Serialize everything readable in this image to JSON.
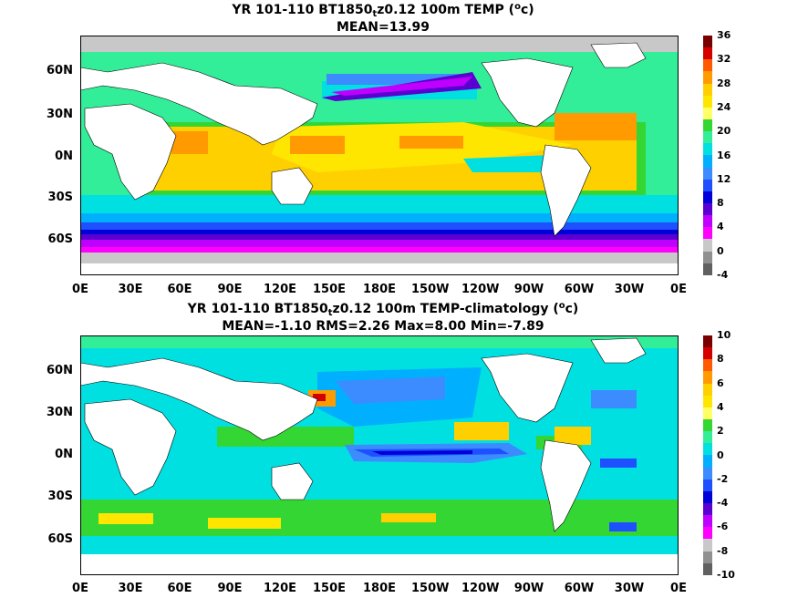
{
  "panel1": {
    "title_pre": "YR 101-110 BT1850",
    "title_sub": "t",
    "title_post": "z0.12 100m TEMP (",
    "title_sup": "o",
    "title_end": "c)",
    "stats": "MEAN=13.99",
    "colorbar_ticks": [
      "36",
      "32",
      "28",
      "24",
      "20",
      "16",
      "12",
      "8",
      "4",
      "0",
      "-4"
    ],
    "colors": [
      "#7a0000",
      "#d40000",
      "#ff5a00",
      "#ff9a00",
      "#ffd000",
      "#ffe600",
      "#ffff66",
      "#33d633",
      "#33ee99",
      "#00e0e0",
      "#00b0ff",
      "#3c8cff",
      "#1e50ff",
      "#0000d8",
      "#5a00d0",
      "#c000ff",
      "#ff00ff",
      "#c8c8c8",
      "#909090",
      "#606060"
    ],
    "landmask_color": "#c8c8c8"
  },
  "panel2": {
    "title_pre": "YR 101-110 BT1850",
    "title_sub": "t",
    "title_post": "z0.12 100m TEMP-climatology (",
    "title_sup": "o",
    "title_end": "c)",
    "stats": "MEAN=-1.10   RMS=2.26   Max=8.00   Min=-7.89",
    "colorbar_ticks": [
      "10",
      "8",
      "6",
      "4",
      "2",
      "0",
      "-2",
      "-4",
      "-6",
      "-8",
      "-10"
    ],
    "colors": [
      "#7a0000",
      "#d40000",
      "#ff5a00",
      "#ff9a00",
      "#ffd000",
      "#ffe600",
      "#ffff66",
      "#33d633",
      "#33ee99",
      "#00e0e0",
      "#00b0ff",
      "#3c8cff",
      "#1e50ff",
      "#0000d8",
      "#5a00d0",
      "#c000ff",
      "#ff00ff",
      "#c8c8c8",
      "#909090",
      "#606060"
    ]
  },
  "axes": {
    "xticks": [
      "0E",
      "30E",
      "60E",
      "90E",
      "120E",
      "150E",
      "180E",
      "150W",
      "120W",
      "90W",
      "60W",
      "30W",
      "0E"
    ],
    "yticks": [
      "60N",
      "30N",
      "0N",
      "30S",
      "60S"
    ]
  }
}
